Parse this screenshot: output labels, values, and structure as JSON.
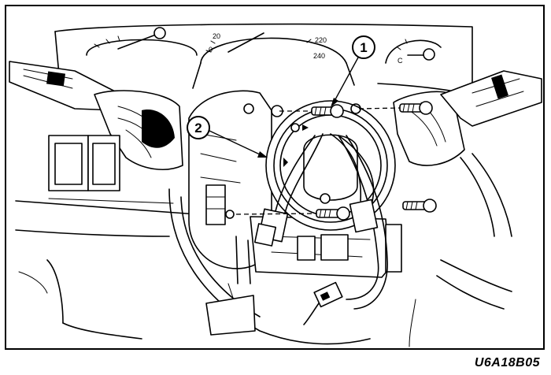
{
  "figure": {
    "code": "U6A18B05",
    "callouts": [
      {
        "number": "1",
        "target": "clock-spring-screws"
      },
      {
        "number": "2",
        "target": "clock-spring"
      }
    ],
    "gauge_labels": {
      "speed_20": "20",
      "speed_0": "0",
      "speed_220": "220",
      "speed_240": "240",
      "temp_c": "C"
    },
    "colors": {
      "line": "#000000",
      "background": "#ffffff"
    }
  }
}
